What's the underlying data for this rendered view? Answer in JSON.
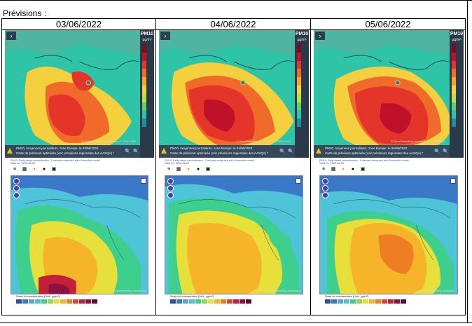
{
  "section_title": "Prévisions :",
  "columns": [
    {
      "date": "03/06/2022",
      "top_caption_line1": "PM10, moyennes journalières, zone Europe, le 03/06/2022",
      "top_caption_line2": "Carte de prévision optimisée (voir prévisions régionales des AASQA) *",
      "lower_caption_line1": "PM10: Daily mean concentration - Forecast computed with Ensemble model",
      "lower_caption_line2": "Valid for: 2022-06-03"
    },
    {
      "date": "04/06/2022",
      "top_caption_line1": "PM10, moyennes journalières, zone Europe, le 04/06/2022",
      "top_caption_line2": "Carte de prévision optimisée (voir prévisions régionales des AASQA) *",
      "lower_caption_line1": "PM10: Daily mean concentration - Forecast computed with Ensemble model",
      "lower_caption_line2": "Valid for: 2022-06-04"
    },
    {
      "date": "05/06/2022",
      "top_caption_line1": "PM10, moyennes journalières, zone Europe, le 05/06/2022",
      "top_caption_line2": "Carte de prévision optimisée (voir prévisions régionales des AASQA) *",
      "lower_caption_line1": "PM10: Daily mean concentration - Forecast computed with Ensemble model",
      "lower_caption_line2": "Valid for: 2022-06-05"
    }
  ],
  "legend": {
    "title": "PM10",
    "unit": "µg/m³",
    "colors": [
      "#7b0d1e",
      "#c0102a",
      "#e5352b",
      "#f06b2a",
      "#f5a623",
      "#f4d03f",
      "#b8e04a",
      "#5fd06a",
      "#2fc3a8",
      "#1f8fa0"
    ]
  },
  "top_map_copyright": "© OpenStreetMap contributors  © PREV'AIR",
  "lower_scale_label": "Scale for concentration (Unit : µg/m³)",
  "lower_scale_colors": [
    "#2452a0",
    "#3a78c8",
    "#5aa2e0",
    "#4fc3d8",
    "#3ecf8e",
    "#8fdc4a",
    "#e8e03a",
    "#f5b42a",
    "#ef7d24",
    "#e3442a",
    "#c41e3a",
    "#8e1040",
    "#5c0a3a"
  ],
  "lower_map_copyright": "© OpenStreetMap contributors",
  "icons": [
    "chevron-right-icon",
    "warning-icon",
    "zoom-in-icon",
    "zoom-out-icon",
    "menu-icon",
    "calendar-icon",
    "pin-icon",
    "info-icon",
    "database-icon",
    "layers-icon"
  ]
}
